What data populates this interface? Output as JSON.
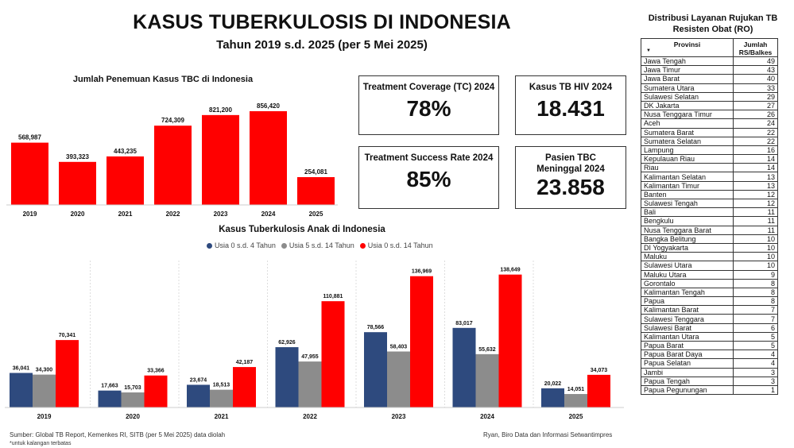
{
  "header": {
    "title": "KASUS TUBERKULOSIS DI INDONESIA",
    "subtitle": "Tahun 2019 s.d. 2025 (per 5 Mei 2025)"
  },
  "kpi": {
    "tc_label": "Treatment Coverage (TC) 2024",
    "tc_value": "78%",
    "hiv_label": "Kasus TB HIV 2024",
    "hiv_value": "18.431",
    "tsr_label": "Treatment Success Rate 2024",
    "tsr_value": "85%",
    "death_label": "Pasien TBC Meninggal 2024",
    "death_value": "23.858"
  },
  "ro": {
    "title": "Distribusi Layanan Rujukan TB Resisten Obat (RO)",
    "col_province": "Provinsi",
    "col_count": "Jumlah RS/Balkes",
    "rows": [
      {
        "p": "Jawa Tengah",
        "n": "49"
      },
      {
        "p": "Jawa Timur",
        "n": "43"
      },
      {
        "p": "Jawa Barat",
        "n": "40"
      },
      {
        "p": "Sumatera Utara",
        "n": "33"
      },
      {
        "p": "Sulawesi Selatan",
        "n": "29"
      },
      {
        "p": "DK Jakarta",
        "n": "27"
      },
      {
        "p": "Nusa Tenggara Timur",
        "n": "26"
      },
      {
        "p": "Aceh",
        "n": "24"
      },
      {
        "p": "Sumatera Barat",
        "n": "22"
      },
      {
        "p": "Sumatera Selatan",
        "n": "22"
      },
      {
        "p": "Lampung",
        "n": "16"
      },
      {
        "p": "Kepulauan Riau",
        "n": "14"
      },
      {
        "p": "Riau",
        "n": "14"
      },
      {
        "p": "Kalimantan Selatan",
        "n": "13"
      },
      {
        "p": "Kalimantan Timur",
        "n": "13"
      },
      {
        "p": "Banten",
        "n": "12"
      },
      {
        "p": "Sulawesi Tengah",
        "n": "12"
      },
      {
        "p": "Bali",
        "n": "11"
      },
      {
        "p": "Bengkulu",
        "n": "11"
      },
      {
        "p": "Nusa Tenggara Barat",
        "n": "11"
      },
      {
        "p": "Bangka Belitung",
        "n": "10"
      },
      {
        "p": "DI Yogyakarta",
        "n": "10"
      },
      {
        "p": "Maluku",
        "n": "10"
      },
      {
        "p": "Sulawesi Utara",
        "n": "10"
      },
      {
        "p": "Maluku Utara",
        "n": "9"
      },
      {
        "p": "Gorontalo",
        "n": "8"
      },
      {
        "p": "Kalimantan Tengah",
        "n": "8"
      },
      {
        "p": "Papua",
        "n": "8"
      },
      {
        "p": "Kalimantan Barat",
        "n": "7"
      },
      {
        "p": "Sulawesi Tenggara",
        "n": "7"
      },
      {
        "p": "Sulawesi Barat",
        "n": "6"
      },
      {
        "p": "Kalimantan Utara",
        "n": "5"
      },
      {
        "p": "Papua Barat",
        "n": "5"
      },
      {
        "p": "Papua Barat Daya",
        "n": "4"
      },
      {
        "p": "Papua Selatan",
        "n": "4"
      },
      {
        "p": "Jambi",
        "n": "3"
      },
      {
        "p": "Papua Tengah",
        "n": "3"
      },
      {
        "p": "Papua Pegunungan",
        "n": "1"
      }
    ]
  },
  "footer": {
    "source": "Sumber: Global TB Report, Kemenkes RI, SITB (per 5 Mei 2025) data diolah",
    "note": "*untuk kalangan terbatas",
    "author": "Ryan, Biro Data dan Informasi Setwantimpres"
  },
  "colors": {
    "red": "#ff0000",
    "navy": "#2e4a7e",
    "gray": "#8c8c8c"
  },
  "chart_data": [
    {
      "type": "bar",
      "title": "Jumlah Penemuan Kasus TBC di Indonesia",
      "categories": [
        "2019",
        "2020",
        "2021",
        "2022",
        "2023",
        "2024",
        "2025"
      ],
      "values": [
        568987,
        393323,
        443235,
        724309,
        821200,
        856420,
        254081
      ],
      "labels": [
        "568,987",
        "393,323",
        "443,235",
        "724,309",
        "821,200",
        "856,420",
        "254,081"
      ],
      "ylim": [
        0,
        900000
      ],
      "grid": false
    },
    {
      "type": "bar",
      "title": "Kasus Tuberkulosis Anak di Indonesia",
      "categories": [
        "2019",
        "2020",
        "2021",
        "2022",
        "2023",
        "2024",
        "2025"
      ],
      "legend": "top-center",
      "ylim": [
        0,
        145000
      ],
      "series": [
        {
          "name": "Usia 0 s.d. 4 Tahun",
          "color": "#2e4a7e",
          "values": [
            36041,
            17663,
            23674,
            62926,
            78566,
            83017,
            20022
          ],
          "labels": [
            "36,041",
            "17,663",
            "23,674",
            "62,926",
            "78,566",
            "83,017",
            "20,022"
          ]
        },
        {
          "name": "Usia 5 s.d. 14 Tahun",
          "color": "#8c8c8c",
          "values": [
            34300,
            15703,
            18513,
            47955,
            58403,
            55632,
            14051
          ],
          "labels": [
            "34,300",
            "15,703",
            "18,513",
            "47,955",
            "58,403",
            "55,632",
            "14,051"
          ]
        },
        {
          "name": "Usia 0 s.d. 14 Tahun",
          "color": "#ff0000",
          "values": [
            70341,
            33366,
            42187,
            110881,
            136969,
            138649,
            34073
          ],
          "labels": [
            "70,341",
            "33,366",
            "42,187",
            "110,881",
            "136,969",
            "138,649",
            "34,073"
          ]
        }
      ]
    }
  ]
}
